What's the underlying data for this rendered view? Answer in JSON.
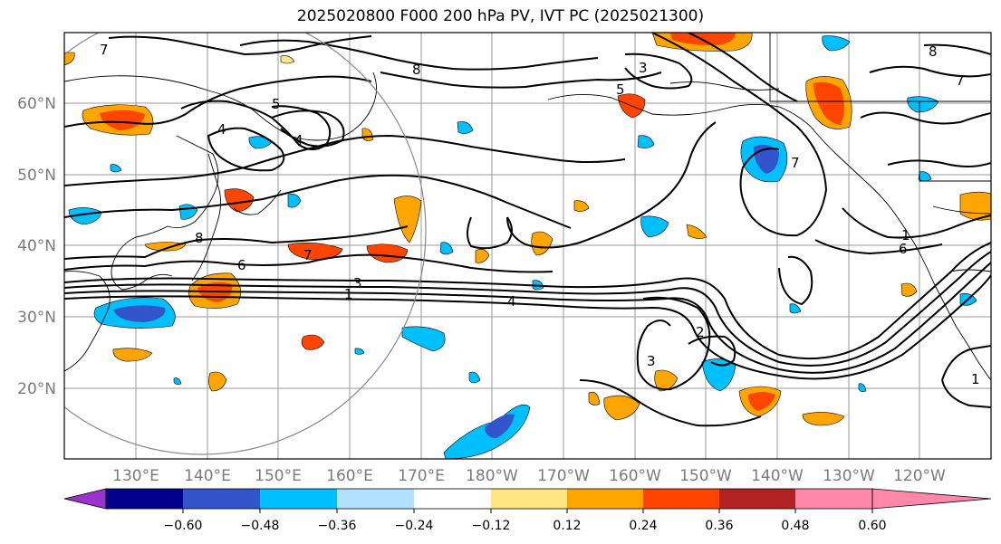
{
  "figure": {
    "title": "2025020800 F000 200 hPa PV, IVT PC (2025021300)"
  },
  "map": {
    "lat_labels": [
      "60°N",
      "50°N",
      "40°N",
      "30°N",
      "20°N"
    ],
    "lon_labels": [
      "130°E",
      "140°E",
      "150°E",
      "160°E",
      "170°E",
      "180°W",
      "170°W",
      "160°W",
      "150°W",
      "140°W",
      "130°W",
      "120°W"
    ],
    "contour_labels": [
      "7",
      "8",
      "4",
      "3",
      "5",
      "5",
      "4",
      "8",
      "7",
      "8",
      "6",
      "7",
      "3",
      "1",
      "4",
      "2",
      "3",
      "7",
      "1",
      "6",
      "1"
    ]
  },
  "colorbar": {
    "ticks": [
      "−0.60",
      "−0.48",
      "−0.36",
      "−0.24",
      "−0.12",
      "0.12",
      "0.24",
      "0.36",
      "0.48",
      "0.60"
    ],
    "colors": [
      "#9933cc",
      "#00008b",
      "#3355cc",
      "#00bfff",
      "#b0e2ff",
      "#ffffff",
      "#ffe680",
      "#ffa500",
      "#ff4500",
      "#b22222",
      "#ff88aa"
    ]
  }
}
